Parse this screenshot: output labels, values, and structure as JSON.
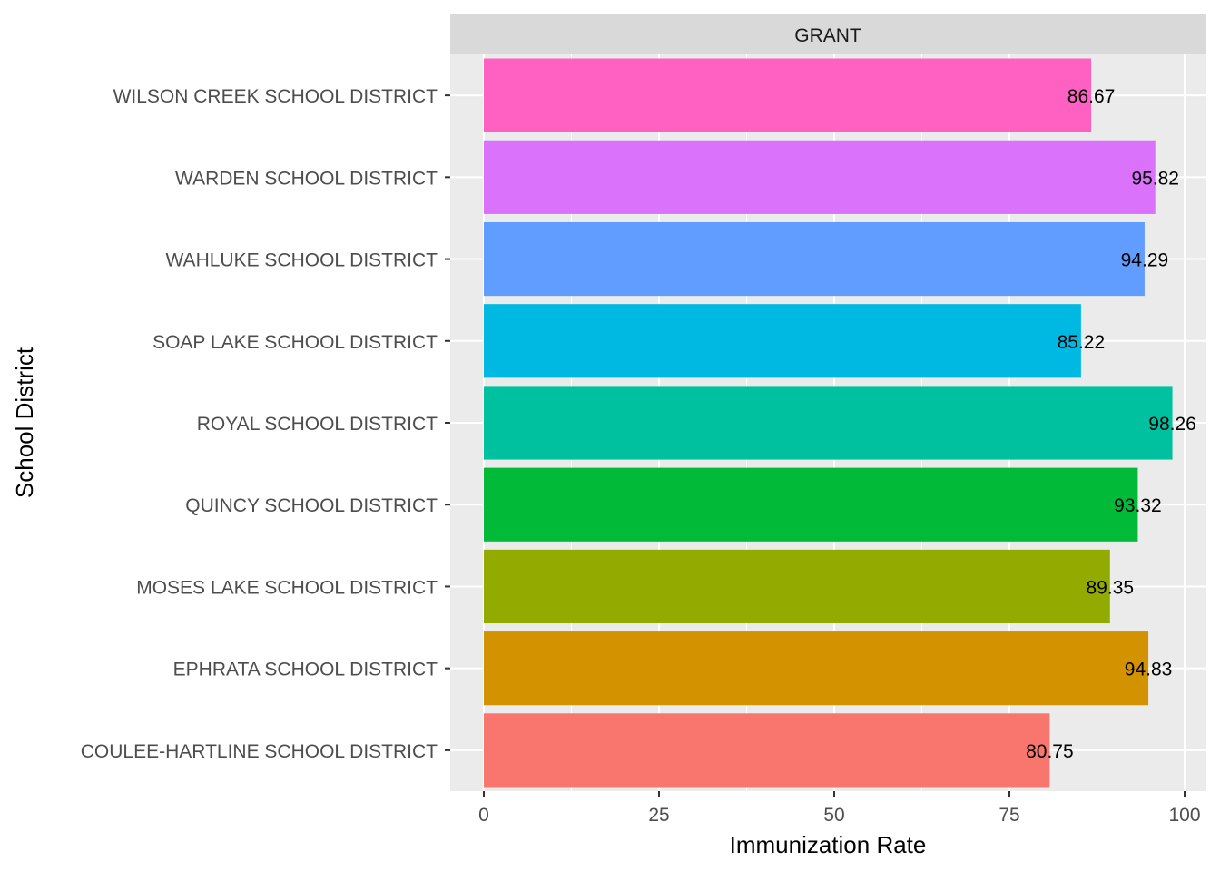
{
  "chart_data": {
    "type": "bar",
    "orientation": "horizontal",
    "facet_label": "GRANT",
    "xlabel": "Immunization Rate",
    "ylabel": "School District",
    "xlim": [
      0,
      100
    ],
    "xticks": [
      0,
      25,
      50,
      75,
      100
    ],
    "grid": true,
    "categories": [
      "COULEE-HARTLINE SCHOOL DISTRICT",
      "EPHRATA SCHOOL DISTRICT",
      "MOSES LAKE SCHOOL DISTRICT",
      "QUINCY SCHOOL DISTRICT",
      "ROYAL SCHOOL DISTRICT",
      "SOAP LAKE SCHOOL DISTRICT",
      "WAHLUKE SCHOOL DISTRICT",
      "WARDEN SCHOOL DISTRICT",
      "WILSON CREEK SCHOOL DISTRICT"
    ],
    "values": [
      80.75,
      94.83,
      89.35,
      93.32,
      98.26,
      85.22,
      94.29,
      95.82,
      86.67
    ],
    "value_labels": [
      "80.75",
      "94.83",
      "89.35",
      "93.32",
      "98.26",
      "85.22",
      "94.29",
      "95.82",
      "86.67"
    ],
    "colors": [
      "#F8766D",
      "#D39200",
      "#93AA00",
      "#00BA38",
      "#00C19F",
      "#00B9E3",
      "#619CFF",
      "#DB72FB",
      "#FF61C3"
    ]
  }
}
